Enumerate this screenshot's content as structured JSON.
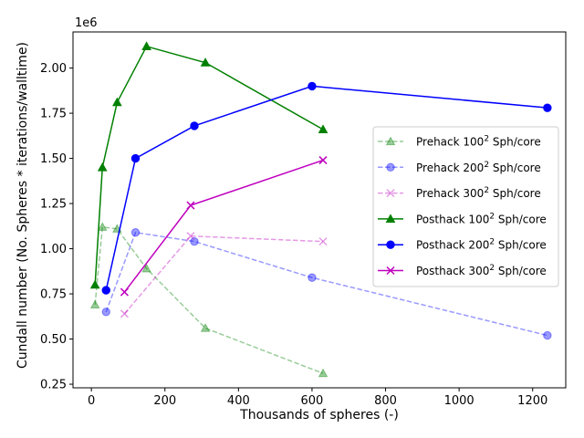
{
  "chart_data": {
    "type": "line",
    "title": "",
    "xlabel": "Thousands of spheres (-)",
    "ylabel": "Cundall number (No. Spheres * iterations/walltime)",
    "y_offset_text": "1e6",
    "xlim": [
      -50,
      1290
    ],
    "ylim": [
      230000,
      2200000
    ],
    "x_ticks": [
      0,
      200,
      400,
      600,
      800,
      1000,
      1200
    ],
    "x_tick_labels": [
      "0",
      "200",
      "400",
      "600",
      "800",
      "1000",
      "1200"
    ],
    "y_ticks": [
      250000,
      500000,
      750000,
      1000000,
      1250000,
      1500000,
      1750000,
      2000000
    ],
    "y_tick_labels": [
      "0.25",
      "0.50",
      "0.75",
      "1.00",
      "1.25",
      "1.50",
      "1.75",
      "2.00"
    ],
    "grid": false,
    "legend_position": "center-right",
    "series": [
      {
        "name": "Prehack 100",
        "name_sup": "2",
        "name_suffix": " Sph/core",
        "color": "#008000",
        "linestyle": "dashed",
        "marker": "triangle",
        "alpha": 0.4,
        "x": [
          10,
          30,
          70,
          150,
          310,
          630
        ],
        "y": [
          690000,
          1120000,
          1110000,
          890000,
          560000,
          310000
        ]
      },
      {
        "name": "Prehack 200",
        "name_sup": "2",
        "name_suffix": " Sph/core",
        "color": "#0000ff",
        "linestyle": "dashed",
        "marker": "circle",
        "alpha": 0.4,
        "x": [
          40,
          120,
          280,
          600,
          1240
        ],
        "y": [
          650000,
          1090000,
          1040000,
          840000,
          520000
        ]
      },
      {
        "name": "Prehack 300",
        "name_sup": "2",
        "name_suffix": " Sph/core",
        "color": "#bf00bf",
        "linestyle": "dashed",
        "marker": "x",
        "alpha": 0.4,
        "x": [
          90,
          270,
          630
        ],
        "y": [
          640000,
          1070000,
          1040000
        ]
      },
      {
        "name": "Posthack 100",
        "name_sup": "2",
        "name_suffix": " Sph/core",
        "color": "#008000",
        "linestyle": "solid",
        "marker": "triangle",
        "alpha": 1,
        "x": [
          10,
          30,
          70,
          150,
          310,
          630
        ],
        "y": [
          800000,
          1450000,
          1810000,
          2120000,
          2030000,
          1660000
        ]
      },
      {
        "name": "Posthack 200",
        "name_sup": "2",
        "name_suffix": " Sph/core",
        "color": "#0000ff",
        "linestyle": "solid",
        "marker": "circle",
        "alpha": 1,
        "x": [
          40,
          120,
          280,
          600,
          1240
        ],
        "y": [
          770000,
          1500000,
          1680000,
          1900000,
          1780000
        ]
      },
      {
        "name": "Posthack 300",
        "name_sup": "2",
        "name_suffix": " Sph/core",
        "color": "#bf00bf",
        "linestyle": "solid",
        "marker": "x",
        "alpha": 1,
        "x": [
          90,
          270,
          630
        ],
        "y": [
          760000,
          1240000,
          1490000
        ]
      }
    ]
  }
}
